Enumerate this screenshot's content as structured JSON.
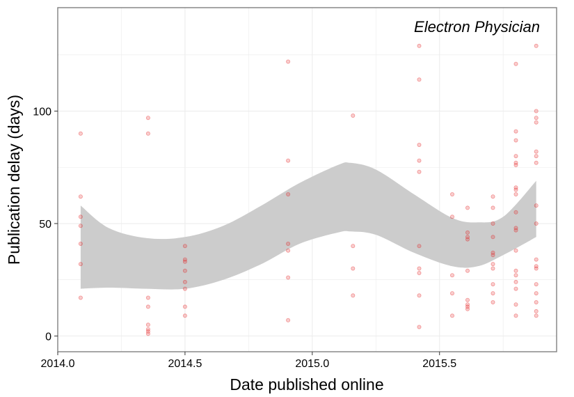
{
  "chart_data": {
    "type": "scatter",
    "title": "",
    "annotation": "Electron Physician",
    "xlabel": "Date published online",
    "ylabel": "Publication delay (days)",
    "xlim": [
      2014.0,
      2015.96
    ],
    "ylim": [
      -7,
      146
    ],
    "xticks": [
      2014.0,
      2014.5,
      2015.0,
      2015.5
    ],
    "xtick_labels": [
      "2014.0",
      "2014.5",
      "2015.0",
      "2015.5"
    ],
    "yticks": [
      0,
      50,
      100
    ],
    "ytick_labels": [
      "0",
      "50",
      "100"
    ],
    "grid": true,
    "colors": {
      "points": "#e31a1c",
      "ribbon": "#cccccc",
      "grid": "#ebebeb",
      "border": "#7f7f7f"
    },
    "points": [
      [
        2014.09,
        90
      ],
      [
        2014.09,
        62
      ],
      [
        2014.09,
        53
      ],
      [
        2014.09,
        49
      ],
      [
        2014.09,
        41
      ],
      [
        2014.09,
        32
      ],
      [
        2014.09,
        17
      ],
      [
        2014.355,
        97
      ],
      [
        2014.355,
        90
      ],
      [
        2014.355,
        17
      ],
      [
        2014.355,
        13
      ],
      [
        2014.355,
        5
      ],
      [
        2014.355,
        3
      ],
      [
        2014.355,
        2
      ],
      [
        2014.355,
        1
      ],
      [
        2014.5,
        40
      ],
      [
        2014.5,
        34
      ],
      [
        2014.5,
        33
      ],
      [
        2014.5,
        29
      ],
      [
        2014.5,
        24
      ],
      [
        2014.5,
        21
      ],
      [
        2014.5,
        13
      ],
      [
        2014.5,
        9
      ],
      [
        2014.905,
        122
      ],
      [
        2014.905,
        78
      ],
      [
        2014.905,
        63
      ],
      [
        2014.905,
        41
      ],
      [
        2014.905,
        38
      ],
      [
        2014.905,
        26
      ],
      [
        2014.905,
        7
      ],
      [
        2015.16,
        98
      ],
      [
        2015.16,
        40
      ],
      [
        2015.16,
        30
      ],
      [
        2015.16,
        18
      ],
      [
        2015.42,
        129
      ],
      [
        2015.42,
        114
      ],
      [
        2015.42,
        85
      ],
      [
        2015.42,
        78
      ],
      [
        2015.42,
        73
      ],
      [
        2015.42,
        40
      ],
      [
        2015.42,
        30
      ],
      [
        2015.42,
        28
      ],
      [
        2015.42,
        18
      ],
      [
        2015.42,
        4
      ],
      [
        2015.55,
        63
      ],
      [
        2015.55,
        53
      ],
      [
        2015.55,
        27
      ],
      [
        2015.55,
        19
      ],
      [
        2015.55,
        9
      ],
      [
        2015.61,
        57
      ],
      [
        2015.61,
        46
      ],
      [
        2015.61,
        44
      ],
      [
        2015.61,
        43
      ],
      [
        2015.61,
        29
      ],
      [
        2015.61,
        16
      ],
      [
        2015.61,
        14
      ],
      [
        2015.61,
        13
      ],
      [
        2015.61,
        12
      ],
      [
        2015.71,
        62
      ],
      [
        2015.71,
        57
      ],
      [
        2015.71,
        50
      ],
      [
        2015.71,
        44
      ],
      [
        2015.71,
        37
      ],
      [
        2015.71,
        36
      ],
      [
        2015.71,
        32
      ],
      [
        2015.71,
        30
      ],
      [
        2015.71,
        23
      ],
      [
        2015.71,
        19
      ],
      [
        2015.71,
        15
      ],
      [
        2015.8,
        121
      ],
      [
        2015.8,
        91
      ],
      [
        2015.8,
        87
      ],
      [
        2015.8,
        80
      ],
      [
        2015.8,
        77
      ],
      [
        2015.8,
        76
      ],
      [
        2015.8,
        66
      ],
      [
        2015.8,
        65
      ],
      [
        2015.8,
        63
      ],
      [
        2015.8,
        55
      ],
      [
        2015.8,
        48
      ],
      [
        2015.8,
        47
      ],
      [
        2015.8,
        38
      ],
      [
        2015.8,
        29
      ],
      [
        2015.8,
        27
      ],
      [
        2015.8,
        24
      ],
      [
        2015.8,
        21
      ],
      [
        2015.8,
        14
      ],
      [
        2015.8,
        9
      ],
      [
        2015.88,
        129
      ],
      [
        2015.88,
        100
      ],
      [
        2015.88,
        97
      ],
      [
        2015.88,
        95
      ],
      [
        2015.88,
        82
      ],
      [
        2015.88,
        80
      ],
      [
        2015.88,
        77
      ],
      [
        2015.88,
        58
      ],
      [
        2015.88,
        50
      ],
      [
        2015.88,
        34
      ],
      [
        2015.88,
        31
      ],
      [
        2015.88,
        30
      ],
      [
        2015.88,
        23
      ],
      [
        2015.88,
        19
      ],
      [
        2015.88,
        15
      ],
      [
        2015.88,
        11
      ],
      [
        2015.88,
        9
      ]
    ],
    "confidence_band": {
      "x": [
        2014.09,
        2014.2,
        2014.35,
        2014.5,
        2014.65,
        2014.8,
        2014.95,
        2015.1,
        2015.15,
        2015.25,
        2015.4,
        2015.55,
        2015.65,
        2015.75,
        2015.88
      ],
      "upper": [
        58,
        48,
        43.5,
        44,
        49,
        58,
        68,
        76,
        77,
        74,
        63,
        52.5,
        50.5,
        53,
        69
      ],
      "lower": [
        21,
        21.5,
        21,
        21,
        25,
        32,
        41,
        46,
        46.5,
        45,
        37,
        31,
        31,
        36,
        44
      ]
    }
  }
}
